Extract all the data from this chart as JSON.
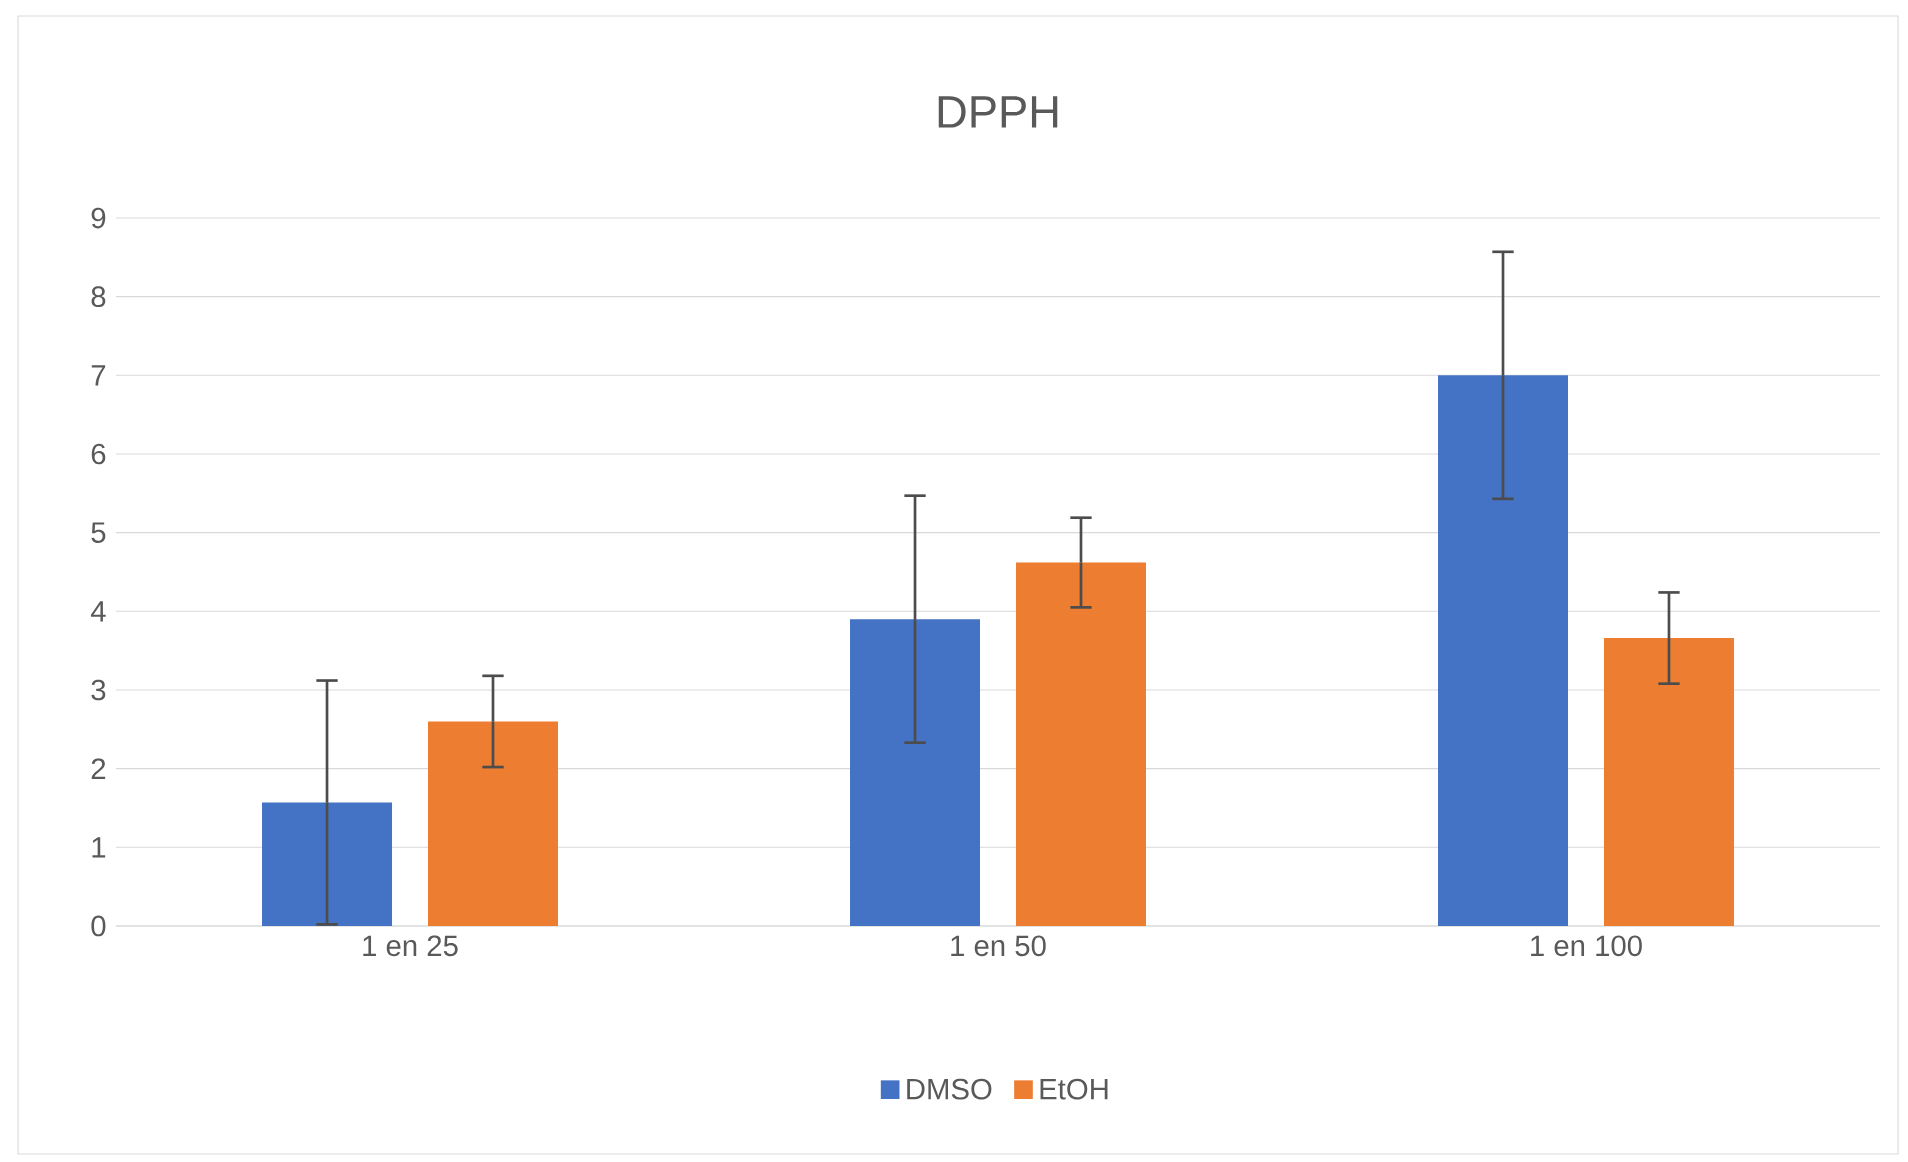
{
  "chart_data": {
    "type": "bar",
    "title": "DPPH",
    "categories": [
      "1 en 25",
      "1 en 50",
      "1 en 100"
    ],
    "series": [
      {
        "name": "DMSO",
        "color": "#4472c4",
        "values": [
          1.57,
          3.9,
          7.0
        ],
        "errors": [
          1.55,
          1.57,
          1.57
        ]
      },
      {
        "name": "EtOH",
        "color": "#ed7d31",
        "values": [
          2.6,
          4.62,
          3.66
        ],
        "errors": [
          0.58,
          0.57,
          0.58
        ]
      }
    ],
    "ylim": [
      0,
      9
    ],
    "yticks": [
      0,
      1,
      2,
      3,
      4,
      5,
      6,
      7,
      8,
      9
    ],
    "grid": "y",
    "legend": "bottom"
  }
}
